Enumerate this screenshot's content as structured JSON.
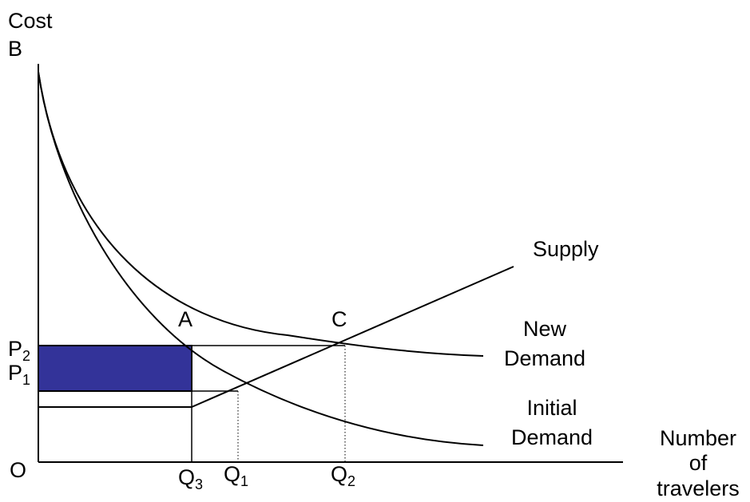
{
  "axes": {
    "y_title_line1": "Cost",
    "y_title_line2": "B",
    "origin": "O",
    "x_title_line1": "Number",
    "x_title_line2": "of",
    "x_title_line3": "travelers"
  },
  "price_labels": {
    "p2": "P",
    "p2_sub": "2",
    "p1": "P",
    "p1_sub": "1"
  },
  "quantity_labels": {
    "q3": "Q",
    "q3_sub": "3",
    "q1": "Q",
    "q1_sub": "1",
    "q2": "Q",
    "q2_sub": "2"
  },
  "points": {
    "a": "A",
    "c": "C"
  },
  "curves": {
    "supply": "Supply",
    "new_demand_line1": "New",
    "new_demand_line2": "Demand",
    "initial_demand_line1": "Initial",
    "initial_demand_line2": "Demand"
  },
  "colors": {
    "shaded_area": "#333399",
    "lines": "#000000"
  }
}
